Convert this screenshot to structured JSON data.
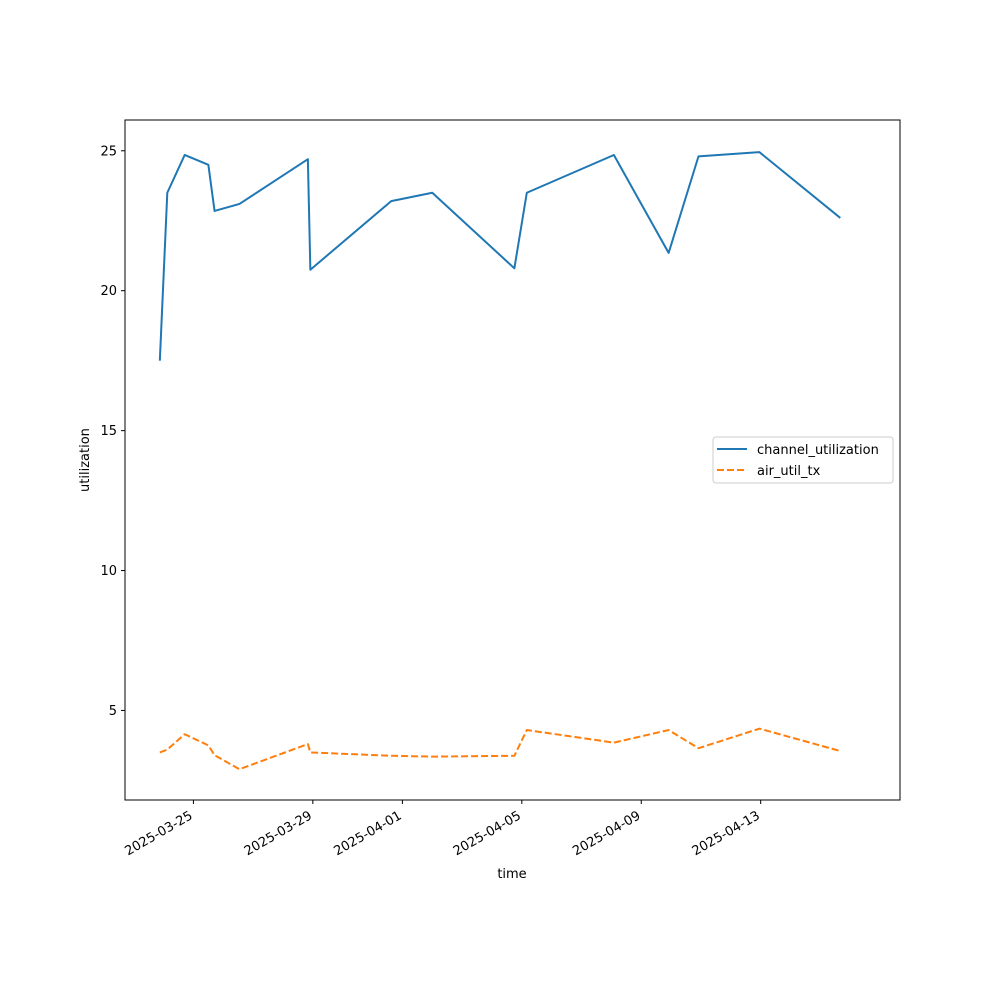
{
  "chart_data": {
    "type": "line",
    "xlabel": "time",
    "ylabel": "utilization",
    "xlim": [
      "2025-03-22T17:00",
      "2025-04-17T16:00"
    ],
    "ylim": [
      1.8,
      26.1
    ],
    "x_ticks": [
      {
        "date": "2025-03-25",
        "label": "2025-03-25"
      },
      {
        "date": "2025-03-29",
        "label": "2025-03-29"
      },
      {
        "date": "2025-04-01",
        "label": "2025-04-01"
      },
      {
        "date": "2025-04-05",
        "label": "2025-04-05"
      },
      {
        "date": "2025-04-09",
        "label": "2025-04-09"
      },
      {
        "date": "2025-04-13",
        "label": "2025-04-13"
      }
    ],
    "y_ticks": [
      5,
      10,
      15,
      20,
      25
    ],
    "grid": false,
    "legend": {
      "position": "center-right"
    },
    "series": [
      {
        "name": "channel_utilization",
        "color": "#1f77b4",
        "dash": "solid",
        "points": [
          {
            "x": "2025-03-23T21:00",
            "y": 17.5
          },
          {
            "x": "2025-03-24T03:00",
            "y": 23.5
          },
          {
            "x": "2025-03-24T17:00",
            "y": 24.85
          },
          {
            "x": "2025-03-25T12:00",
            "y": 24.5
          },
          {
            "x": "2025-03-25T17:00",
            "y": 22.85
          },
          {
            "x": "2025-03-26T13:00",
            "y": 23.1
          },
          {
            "x": "2025-03-28T20:00",
            "y": 24.7
          },
          {
            "x": "2025-03-28T22:00",
            "y": 20.75
          },
          {
            "x": "2025-03-31T15:00",
            "y": 23.2
          },
          {
            "x": "2025-04-02T00:00",
            "y": 23.5
          },
          {
            "x": "2025-04-04T18:00",
            "y": 20.8
          },
          {
            "x": "2025-04-05T04:00",
            "y": 23.5
          },
          {
            "x": "2025-04-08T02:00",
            "y": 24.85
          },
          {
            "x": "2025-04-09T22:00",
            "y": 21.35
          },
          {
            "x": "2025-04-10T22:00",
            "y": 24.8
          },
          {
            "x": "2025-04-12T23:00",
            "y": 24.95
          },
          {
            "x": "2025-04-15T16:00",
            "y": 22.6
          }
        ]
      },
      {
        "name": "air_util_tx",
        "color": "#ff7f0e",
        "dash": "dashed",
        "points": [
          {
            "x": "2025-03-23T21:00",
            "y": 3.5
          },
          {
            "x": "2025-03-24T03:00",
            "y": 3.6
          },
          {
            "x": "2025-03-24T17:00",
            "y": 4.15
          },
          {
            "x": "2025-03-25T12:00",
            "y": 3.75
          },
          {
            "x": "2025-03-25T17:00",
            "y": 3.4
          },
          {
            "x": "2025-03-26T13:00",
            "y": 2.9
          },
          {
            "x": "2025-03-28T20:00",
            "y": 3.8
          },
          {
            "x": "2025-03-28T22:00",
            "y": 3.5
          },
          {
            "x": "2025-03-31T15:00",
            "y": 3.38
          },
          {
            "x": "2025-04-02T00:00",
            "y": 3.35
          },
          {
            "x": "2025-04-04T18:00",
            "y": 3.38
          },
          {
            "x": "2025-04-05T04:00",
            "y": 4.3
          },
          {
            "x": "2025-04-08T02:00",
            "y": 3.85
          },
          {
            "x": "2025-04-09T22:00",
            "y": 4.3
          },
          {
            "x": "2025-04-10T22:00",
            "y": 3.65
          },
          {
            "x": "2025-04-12T23:00",
            "y": 4.35
          },
          {
            "x": "2025-04-15T16:00",
            "y": 3.55
          }
        ]
      }
    ]
  }
}
